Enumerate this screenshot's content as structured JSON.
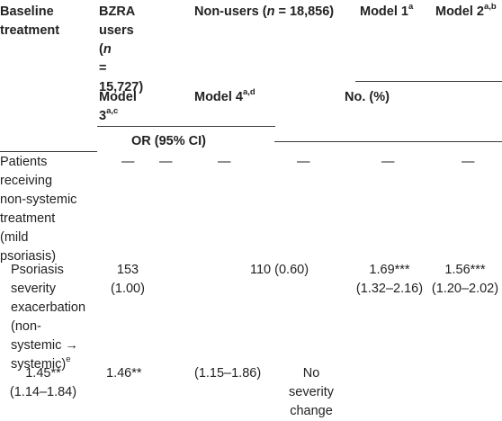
{
  "header": {
    "baseline_treatment": [
      "Baseline",
      "treatment"
    ],
    "bzra_users": {
      "line1": "BZRA",
      "line2": "users",
      "line3_open": "(",
      "n": "n",
      "line4": "=",
      "line5": "15,727)"
    },
    "non_users": {
      "prefix": "Non-users (",
      "n": "n",
      "suffix": " = 18,856)"
    },
    "model1": {
      "label": "Model 1",
      "sup": "a"
    },
    "model2": {
      "label": "Model 2",
      "sup": "a,b"
    },
    "model3": {
      "line1": "Model",
      "line2": "3",
      "sup": "a,c"
    },
    "model4": {
      "label": "Model 4",
      "sup": "a,d"
    },
    "no_pct": "No. (%)",
    "or_ci": "OR (95% CI)"
  },
  "rows": {
    "mild": {
      "label": [
        "Patients",
        "receiving",
        "non-systemic",
        "treatment",
        "(mild",
        "psoriasis)"
      ],
      "dash": "—"
    },
    "exacerbation": {
      "label": [
        "Psoriasis",
        "severity",
        "exacerbation",
        "(non-",
        "systemic →",
        "systemic)"
      ],
      "label_sup": "e",
      "bzra": [
        "153",
        "(1.00)"
      ],
      "nonusers": "110 (0.60)",
      "model1": [
        "1.69***",
        "(1.32–2.16)"
      ],
      "model2": [
        "1.56***",
        "(1.20–2.02)"
      ]
    },
    "last": {
      "v1": [
        "1.45**",
        "(1.14–1.84)"
      ],
      "v2": "1.46**",
      "v3": "(1.15–1.86)",
      "no_change": [
        "No",
        "severity",
        "change"
      ]
    }
  }
}
